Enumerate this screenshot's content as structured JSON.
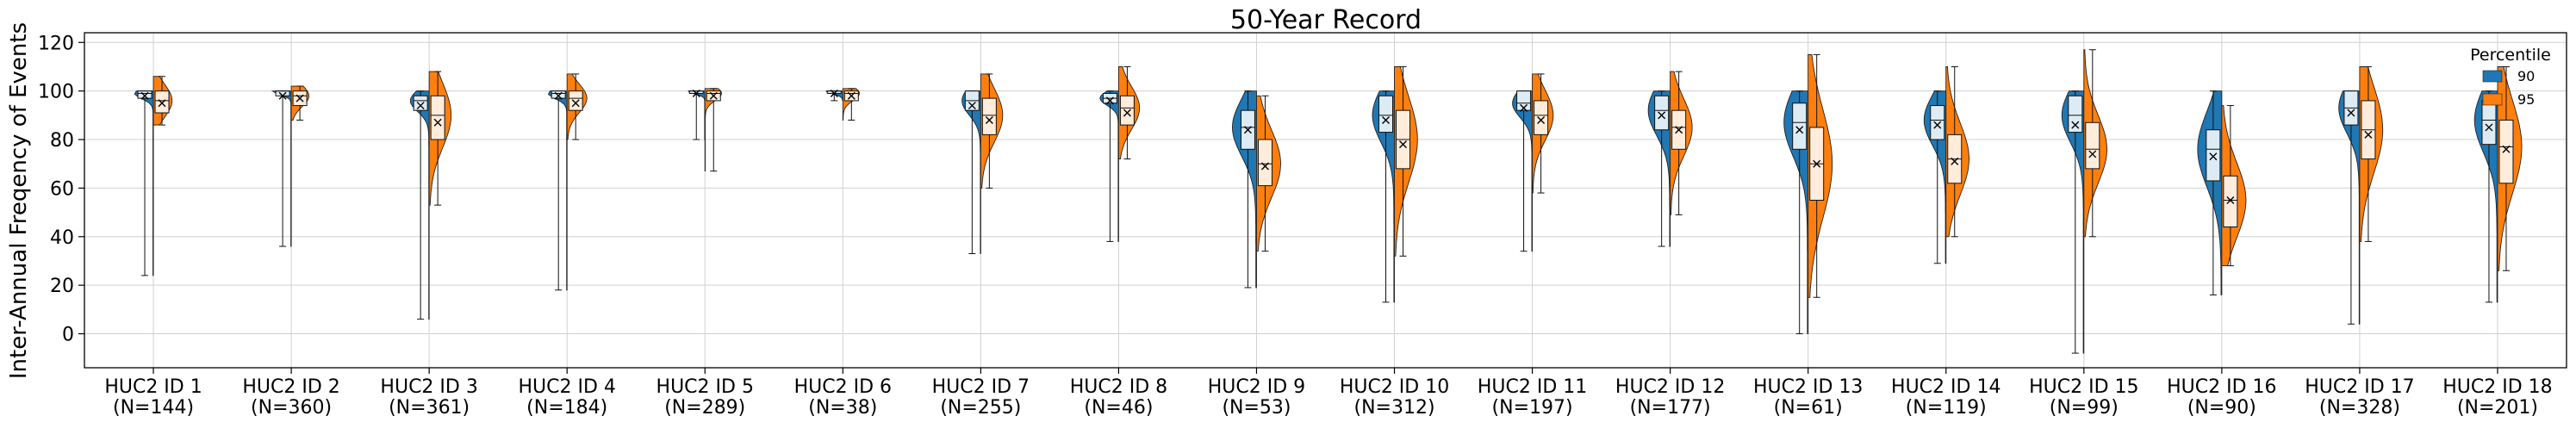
{
  "chart_data": {
    "type": "violin",
    "title": "50-Year Record",
    "xlabel": "",
    "ylabel": "Inter-Annual Freqency of Events",
    "ylim": [
      -14,
      124
    ],
    "yticks": [
      0,
      20,
      40,
      60,
      80,
      100,
      120
    ],
    "grid": true,
    "legend": {
      "title": "Percentile",
      "placement": "top-right"
    },
    "categories": [
      {
        "name": "HUC2 ID 1",
        "n": "(N=144)"
      },
      {
        "name": "HUC2 ID 2",
        "n": "(N=360)"
      },
      {
        "name": "HUC2 ID 3",
        "n": "(N=361)"
      },
      {
        "name": "HUC2 ID 4",
        "n": "(N=184)"
      },
      {
        "name": "HUC2 ID 5",
        "n": "(N=289)"
      },
      {
        "name": "HUC2 ID 6",
        "n": "(N=38)"
      },
      {
        "name": "HUC2 ID 7",
        "n": "(N=255)"
      },
      {
        "name": "HUC2 ID 8",
        "n": "(N=46)"
      },
      {
        "name": "HUC2 ID 9",
        "n": "(N=53)"
      },
      {
        "name": "HUC2 ID 10",
        "n": "(N=312)"
      },
      {
        "name": "HUC2 ID 11",
        "n": "(N=197)"
      },
      {
        "name": "HUC2 ID 12",
        "n": "(N=177)"
      },
      {
        "name": "HUC2 ID 13",
        "n": "(N=61)"
      },
      {
        "name": "HUC2 ID 14",
        "n": "(N=119)"
      },
      {
        "name": "HUC2 ID 15",
        "n": "(N=99)"
      },
      {
        "name": "HUC2 ID 16",
        "n": "(N=90)"
      },
      {
        "name": "HUC2 ID 17",
        "n": "(N=328)"
      },
      {
        "name": "HUC2 ID 18",
        "n": "(N=201)"
      }
    ],
    "series": [
      {
        "name": "90",
        "color": "#1f77b4",
        "stats": [
          {
            "min": 24,
            "q1": 97,
            "median": 99,
            "q3": 100,
            "max": 100,
            "mean": 98,
            "spread": 0.5
          },
          {
            "min": 36,
            "q1": 98,
            "median": 100,
            "q3": 100,
            "max": 100,
            "mean": 98,
            "spread": 0.5
          },
          {
            "min": 6,
            "q1": 92,
            "median": 96,
            "q3": 98,
            "max": 100,
            "mean": 94,
            "spread": 0.5
          },
          {
            "min": 18,
            "q1": 97,
            "median": 99,
            "q3": 100,
            "max": 100,
            "mean": 98,
            "spread": 0.5
          },
          {
            "min": 80,
            "q1": 99,
            "median": 100,
            "q3": 100,
            "max": 100,
            "mean": 99,
            "spread": 0.3
          },
          {
            "min": 96,
            "q1": 99,
            "median": 100,
            "q3": 100,
            "max": 100,
            "mean": 99,
            "spread": 0.3
          },
          {
            "min": 33,
            "q1": 92,
            "median": 96,
            "q3": 100,
            "max": 100,
            "mean": 94,
            "spread": 0.5
          },
          {
            "min": 38,
            "q1": 95,
            "median": 97,
            "q3": 99,
            "max": 100,
            "mean": 96,
            "spread": 0.5
          },
          {
            "min": 19,
            "q1": 76,
            "median": 85,
            "q3": 92,
            "max": 100,
            "mean": 84,
            "spread": 1.0
          },
          {
            "min": 13,
            "q1": 83,
            "median": 90,
            "q3": 98,
            "max": 100,
            "mean": 88,
            "spread": 0.8
          },
          {
            "min": 34,
            "q1": 92,
            "median": 95,
            "q3": 100,
            "max": 100,
            "mean": 93,
            "spread": 0.6
          },
          {
            "min": 36,
            "q1": 84,
            "median": 92,
            "q3": 98,
            "max": 100,
            "mean": 90,
            "spread": 0.8
          },
          {
            "min": 0,
            "q1": 76,
            "median": 87,
            "q3": 95,
            "max": 100,
            "mean": 84,
            "spread": 1.0
          },
          {
            "min": 29,
            "q1": 80,
            "median": 88,
            "q3": 94,
            "max": 100,
            "mean": 86,
            "spread": 0.8
          },
          {
            "min": -8,
            "q1": 83,
            "median": 90,
            "q3": 98,
            "max": 100,
            "mean": 86,
            "spread": 0.8
          },
          {
            "min": 16,
            "q1": 63,
            "median": 76,
            "q3": 84,
            "max": 100,
            "mean": 73,
            "spread": 1.0
          },
          {
            "min": 4,
            "q1": 86,
            "median": 93,
            "q3": 100,
            "max": 100,
            "mean": 91,
            "spread": 0.7
          },
          {
            "min": 13,
            "q1": 78,
            "median": 88,
            "q3": 96,
            "max": 100,
            "mean": 85,
            "spread": 0.9
          }
        ]
      },
      {
        "name": "95",
        "color": "#ff7f0e",
        "stats": [
          {
            "min": 86,
            "q1": 91,
            "median": 96,
            "q3": 100,
            "max": 106,
            "mean": 95,
            "spread": 0.5
          },
          {
            "min": 88,
            "q1": 94,
            "median": 98,
            "q3": 100,
            "max": 102,
            "mean": 97,
            "spread": 0.4
          },
          {
            "min": 53,
            "q1": 80,
            "median": 90,
            "q3": 98,
            "max": 108,
            "mean": 87,
            "spread": 0.8
          },
          {
            "min": 80,
            "q1": 92,
            "median": 97,
            "q3": 100,
            "max": 107,
            "mean": 95,
            "spread": 0.6
          },
          {
            "min": 67,
            "q1": 96,
            "median": 99,
            "q3": 100,
            "max": 101,
            "mean": 98,
            "spread": 0.3
          },
          {
            "min": 88,
            "q1": 96,
            "median": 99,
            "q3": 100,
            "max": 101,
            "mean": 98,
            "spread": 0.3
          },
          {
            "min": 60,
            "q1": 82,
            "median": 90,
            "q3": 97,
            "max": 107,
            "mean": 88,
            "spread": 0.8
          },
          {
            "min": 72,
            "q1": 86,
            "median": 93,
            "q3": 98,
            "max": 110,
            "mean": 91,
            "spread": 0.7
          },
          {
            "min": 34,
            "q1": 61,
            "median": 70,
            "q3": 80,
            "max": 98,
            "mean": 69,
            "spread": 1.0
          },
          {
            "min": 32,
            "q1": 68,
            "median": 80,
            "q3": 92,
            "max": 110,
            "mean": 78,
            "spread": 0.9
          },
          {
            "min": 58,
            "q1": 82,
            "median": 90,
            "q3": 96,
            "max": 107,
            "mean": 88,
            "spread": 0.7
          },
          {
            "min": 49,
            "q1": 76,
            "median": 85,
            "q3": 92,
            "max": 108,
            "mean": 84,
            "spread": 0.8
          },
          {
            "min": 15,
            "q1": 55,
            "median": 70,
            "q3": 85,
            "max": 115,
            "mean": 70,
            "spread": 1.0
          },
          {
            "min": 40,
            "q1": 62,
            "median": 72,
            "q3": 82,
            "max": 110,
            "mean": 71,
            "spread": 0.9
          },
          {
            "min": 40,
            "q1": 68,
            "median": 76,
            "q3": 87,
            "max": 117,
            "mean": 74,
            "spread": 0.9
          },
          {
            "min": 28,
            "q1": 44,
            "median": 55,
            "q3": 65,
            "max": 94,
            "mean": 55,
            "spread": 1.0
          },
          {
            "min": 38,
            "q1": 72,
            "median": 84,
            "q3": 96,
            "max": 110,
            "mean": 82,
            "spread": 0.9
          },
          {
            "min": 26,
            "q1": 62,
            "median": 77,
            "q3": 88,
            "max": 110,
            "mean": 76,
            "spread": 1.0
          }
        ]
      }
    ]
  }
}
